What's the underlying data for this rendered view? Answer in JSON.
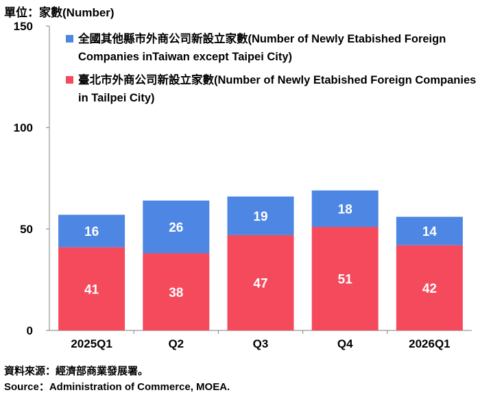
{
  "unit_label": "單位：家數(Number)",
  "source_zh": "資料來源：經濟部商業發展署。",
  "source_en": "Source：Administration of Commerce, MOEA.",
  "colors": {
    "outside_taipei": "#4d86e3",
    "taipei": "#f44a5c"
  },
  "chart_data": {
    "type": "bar",
    "stacked": true,
    "categories": [
      "2025Q1",
      "Q2",
      "Q3",
      "Q4",
      "2026Q1"
    ],
    "series": [
      {
        "name": "臺北市外商公司新設立家數(Number of Newly Etabished Foreign Companies in Tailpei City)",
        "values": [
          41,
          38,
          47,
          51,
          42
        ],
        "color": "#f44a5c"
      },
      {
        "name": "全國其他縣市外商公司新設立家數(Number of Newly Etabished Foreign Companies inTaiwan except Taipei City)",
        "values": [
          16,
          26,
          19,
          18,
          14
        ],
        "color": "#4d86e3"
      }
    ],
    "ylim": [
      0,
      150
    ],
    "yticks": [
      0,
      50,
      100,
      150
    ],
    "legend_position": "top-left",
    "grid": false
  }
}
